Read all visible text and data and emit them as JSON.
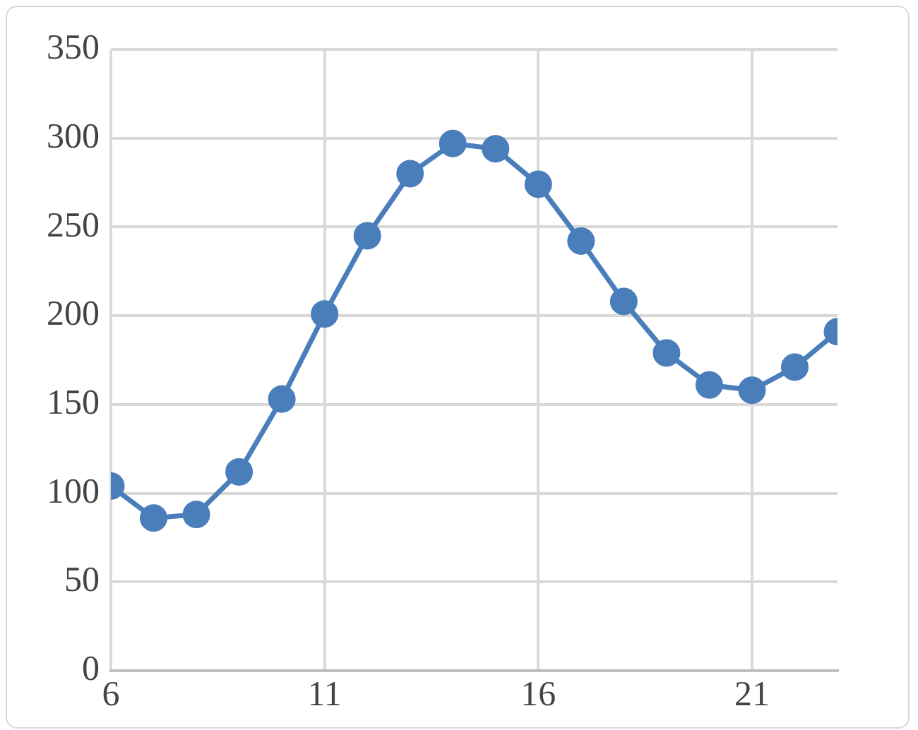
{
  "chart_data": {
    "type": "line",
    "x": [
      6,
      7,
      8,
      9,
      10,
      11,
      12,
      13,
      14,
      15,
      16,
      17,
      18,
      19,
      20,
      21,
      22,
      23
    ],
    "series": [
      {
        "color": "#4a7ebb",
        "values": [
          104,
          86,
          88,
          112,
          153,
          201,
          245,
          280,
          297,
          294,
          274,
          242,
          208,
          179,
          161,
          158,
          171,
          191
        ]
      }
    ],
    "xlim": [
      6,
      23
    ],
    "xticks": [
      6,
      11,
      16,
      21
    ],
    "ylim": [
      0,
      350
    ],
    "yticks": [
      0,
      50,
      100,
      150,
      200,
      250,
      300,
      350
    ],
    "grid": true,
    "legend": false,
    "marker": "circle",
    "line_style": "solid"
  }
}
